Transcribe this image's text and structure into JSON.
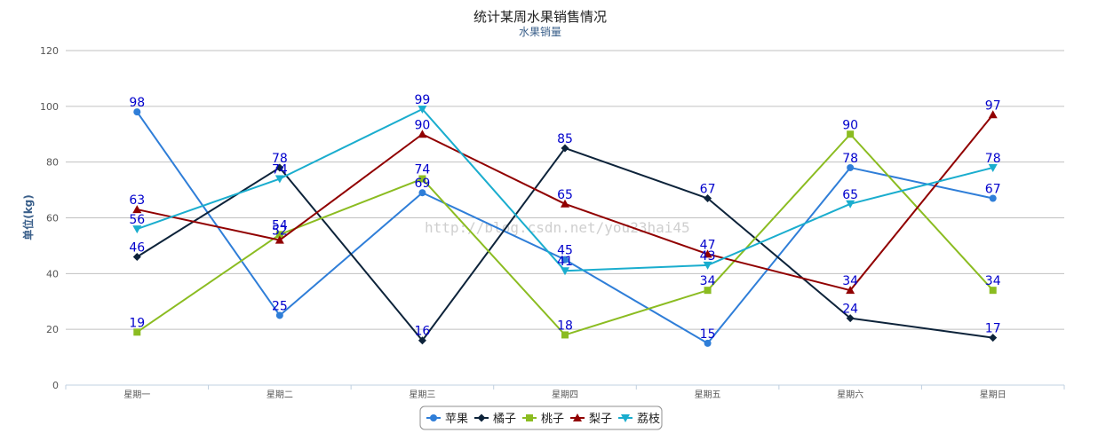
{
  "chart_data": {
    "type": "line",
    "title": "统计某周水果销售情况",
    "subtitle": "水果销量",
    "ylabel": "单位(kg)",
    "xlabel": "",
    "categories": [
      "星期一",
      "星期二",
      "星期三",
      "星期四",
      "星期五",
      "星期六",
      "星期日"
    ],
    "ylim": [
      0,
      120
    ],
    "yticks": [
      0,
      20,
      40,
      60,
      80,
      100,
      120
    ],
    "grid": true,
    "legend_position": "bottom-center",
    "series": [
      {
        "name": "苹果",
        "color": "#2f7ed8",
        "marker": "circle",
        "values": [
          98,
          25,
          69,
          45,
          15,
          78,
          67
        ]
      },
      {
        "name": "橘子",
        "color": "#0d233a",
        "marker": "diamond",
        "values": [
          46,
          78,
          16,
          85,
          67,
          24,
          17
        ]
      },
      {
        "name": "桃子",
        "color": "#8bbc21",
        "marker": "square",
        "values": [
          19,
          54,
          74,
          18,
          34,
          90,
          34
        ]
      },
      {
        "name": "梨子",
        "color": "#910000",
        "marker": "triangle",
        "values": [
          63,
          52,
          90,
          65,
          47,
          34,
          97
        ]
      },
      {
        "name": "荔枝",
        "color": "#1aadce",
        "marker": "triangle-down",
        "values": [
          56,
          74,
          99,
          41,
          43,
          65,
          78
        ]
      }
    ],
    "data_label_color": "#0000cc"
  },
  "watermark": "http://blog.csdn.net/you23hai45"
}
